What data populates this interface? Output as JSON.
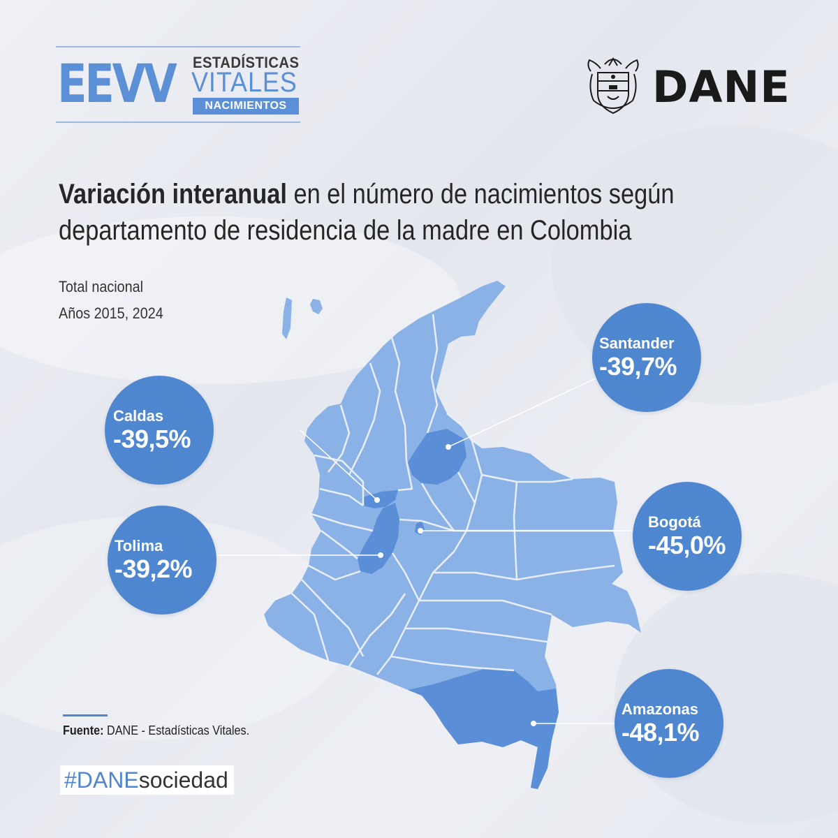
{
  "colors": {
    "accent": "#4f86d0",
    "map_fill": "#8ab2e6",
    "map_highlight": "#5a8ed6",
    "map_border": "#e9eef6",
    "logo_blue": "#5b8fd6"
  },
  "header": {
    "eevv_logo": {
      "big": "EEVV",
      "line1": "ESTADÍSTICAS",
      "line2": "VITALES",
      "tag": "NACIMIENTOS"
    },
    "dane_logo": {
      "wordmark": "DANE",
      "seal_icon": "colombia-coat-of-arms-icon"
    }
  },
  "title": {
    "bold": "Variación interanual",
    "rest_line1": " en el número de nacimientos según",
    "line2": "departamento de residencia de la madre en Colombia"
  },
  "subtitle": {
    "scope": "Total nacional",
    "years": "Años 2015, 2024"
  },
  "callouts": [
    {
      "name": "Santander",
      "value": "-39,7%"
    },
    {
      "name": "Caldas",
      "value": "-39,5%"
    },
    {
      "name": "Bogotá",
      "value": "-45,0%"
    },
    {
      "name": "Tolima",
      "value": "-39,2%"
    },
    {
      "name": "Amazonas",
      "value": "-48,1%"
    }
  ],
  "highlighted_departments": [
    "Santander",
    "Caldas",
    "Bogotá",
    "Tolima",
    "Amazonas"
  ],
  "footer": {
    "source_label": "Fuente:",
    "source_text": " DANE - Estadísticas Vitales.",
    "hashtag_part1": "#DANE",
    "hashtag_part2": "sociedad"
  }
}
